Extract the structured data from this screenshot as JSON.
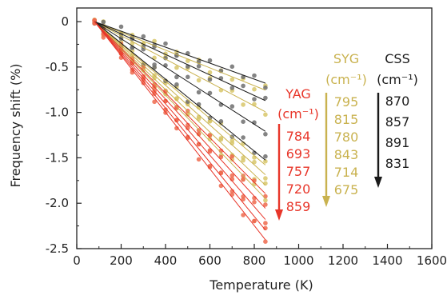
{
  "chart_data": {
    "type": "scatter",
    "title": "",
    "xlabel": "Temperature (K)",
    "ylabel": "Frequency shift (%)",
    "xlim": [
      0,
      1600
    ],
    "ylim": [
      -2.5,
      0.15
    ],
    "x_ticks": [
      0,
      200,
      400,
      600,
      800,
      1000,
      1200,
      1400,
      1600
    ],
    "y_ticks": [
      0,
      -0.5,
      -1.0,
      -1.5,
      -2.0,
      -2.5
    ],
    "x_tick_labels": [
      "0",
      "200",
      "400",
      "600",
      "800",
      "1000",
      "1200",
      "1400",
      "1600"
    ],
    "y_tick_labels": [
      "0",
      "-0.5",
      "-1.0",
      "-1.5",
      "-2.0",
      "-2.5"
    ],
    "grid": false,
    "x": [
      80,
      120,
      200,
      250,
      300,
      350,
      400,
      450,
      500,
      550,
      600,
      650,
      700,
      750,
      800,
      850
    ],
    "groups": [
      {
        "name": "YAG",
        "unit": "(cm⁻¹)",
        "color": "#e8362a",
        "point_color": "#ef6a4e",
        "values": [
          "784",
          "693",
          "757",
          "720",
          "859"
        ],
        "slopes_per_K": [
          -0.00246,
          -0.00267,
          -0.00283,
          -0.00298,
          -0.00312
        ]
      },
      {
        "name": "SYG",
        "unit": "(cm⁻¹)",
        "color": "#c9b24f",
        "point_color": "#d8c76a",
        "values": [
          "795",
          "815",
          "780",
          "843",
          "714",
          "675"
        ],
        "slopes_per_K": [
          -0.00098,
          -0.00129,
          -0.00205,
          -0.00219,
          -0.00234,
          -0.00253
        ]
      },
      {
        "name": "CSS",
        "unit": "(cm⁻¹)",
        "color": "#1a1a1a",
        "point_color": "#6e6e6e",
        "values": [
          "870",
          "857",
          "891",
          "831"
        ],
        "slopes_per_K": [
          -0.00088,
          -0.00113,
          -0.00157,
          -0.00198
        ]
      }
    ]
  }
}
